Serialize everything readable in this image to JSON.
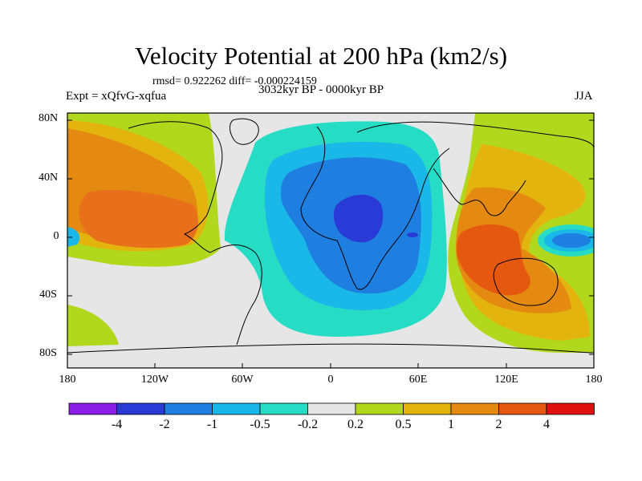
{
  "title": "Velocity Potential at 200 hPa (km2/s)",
  "stats_line": "rmsd= 0.922262 diff= -0.000224159",
  "experiment": "Expt = xQfvG-xqfua",
  "period": "3032kyr BP - 0000kyr BP",
  "season": "JJA",
  "y_axis_labels": [
    "80N",
    "40N",
    "0",
    "40S",
    "80S"
  ],
  "x_axis_labels": [
    "180",
    "120W",
    "60W",
    "0",
    "60E",
    "120E",
    "180"
  ],
  "colorbar": {
    "colors": [
      "#8a1ee6",
      "#2a3ad6",
      "#1f7fe0",
      "#19b8e8",
      "#27dcc4",
      "#e6e6e6",
      "#b2d81e",
      "#e4b40e",
      "#e48a10",
      "#e4580f",
      "#e01010"
    ],
    "labels": [
      "-4",
      "-2",
      "-1",
      "-0.5",
      "-0.2",
      "0.2",
      "0.5",
      "1",
      "2",
      "4"
    ]
  }
}
